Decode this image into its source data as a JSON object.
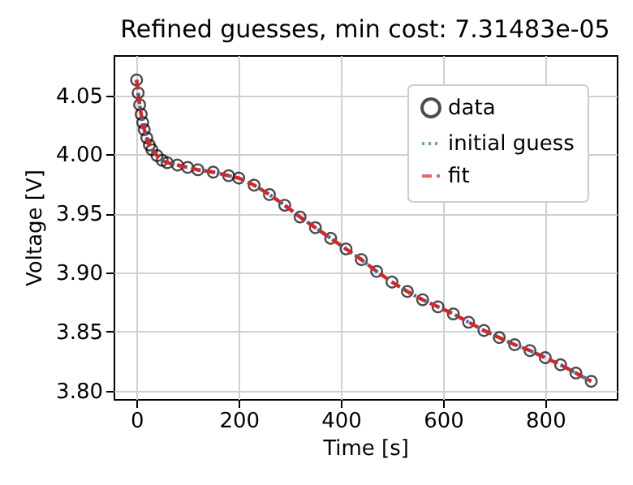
{
  "chart_data": {
    "type": "scatter",
    "title": "Refined guesses, min cost: 7.31483e-05",
    "xlabel": "Time [s]",
    "ylabel": "Voltage [V]",
    "x": [
      0,
      3,
      6,
      9,
      12,
      15,
      20,
      25,
      30,
      40,
      50,
      60,
      80,
      100,
      120,
      150,
      180,
      200,
      230,
      260,
      290,
      320,
      350,
      380,
      410,
      440,
      470,
      500,
      530,
      560,
      590,
      620,
      650,
      680,
      710,
      740,
      770,
      800,
      830,
      860,
      890
    ],
    "series": [
      {
        "name": "data",
        "marker": "circle",
        "color": "#000000",
        "values": [
          4.063,
          4.052,
          4.042,
          4.034,
          4.027,
          4.021,
          4.014,
          4.008,
          4.004,
          3.999,
          3.995,
          3.993,
          3.991,
          3.989,
          3.987,
          3.985,
          3.982,
          3.98,
          3.974,
          3.966,
          3.957,
          3.947,
          3.938,
          3.929,
          3.92,
          3.911,
          3.901,
          3.892,
          3.884,
          3.877,
          3.871,
          3.865,
          3.858,
          3.851,
          3.845,
          3.839,
          3.834,
          3.828,
          3.822,
          3.815,
          3.808
        ]
      },
      {
        "name": "initial guess",
        "type": "line",
        "line_style": "dotted",
        "color": "#1f77b4",
        "values": [
          4.063,
          4.052,
          4.042,
          4.034,
          4.027,
          4.021,
          4.014,
          4.008,
          4.004,
          3.999,
          3.995,
          3.993,
          3.991,
          3.989,
          3.987,
          3.985,
          3.982,
          3.98,
          3.974,
          3.966,
          3.957,
          3.947,
          3.938,
          3.929,
          3.92,
          3.911,
          3.901,
          3.892,
          3.884,
          3.877,
          3.871,
          3.865,
          3.858,
          3.851,
          3.845,
          3.839,
          3.834,
          3.828,
          3.822,
          3.815,
          3.808
        ]
      },
      {
        "name": "fit",
        "type": "line",
        "line_style": "dashed",
        "color": "#d62728",
        "values": [
          4.063,
          4.052,
          4.042,
          4.034,
          4.027,
          4.021,
          4.014,
          4.008,
          4.004,
          3.999,
          3.995,
          3.993,
          3.991,
          3.989,
          3.987,
          3.985,
          3.982,
          3.98,
          3.974,
          3.966,
          3.957,
          3.947,
          3.938,
          3.929,
          3.92,
          3.911,
          3.901,
          3.892,
          3.884,
          3.877,
          3.871,
          3.865,
          3.858,
          3.851,
          3.845,
          3.839,
          3.834,
          3.828,
          3.822,
          3.815,
          3.808
        ]
      }
    ],
    "xlim": [
      -45,
      940
    ],
    "xticks": [
      0,
      200,
      400,
      600,
      800
    ],
    "ylim": [
      3.793,
      4.084
    ],
    "yticks": [
      {
        "value": 3.8,
        "label": "3.80"
      },
      3.85,
      {
        "value": 3.9,
        "label": "3.90"
      },
      3.95,
      {
        "value": 4.0,
        "label": "4.00"
      },
      4.05
    ],
    "grid": true,
    "legend": "top right"
  }
}
